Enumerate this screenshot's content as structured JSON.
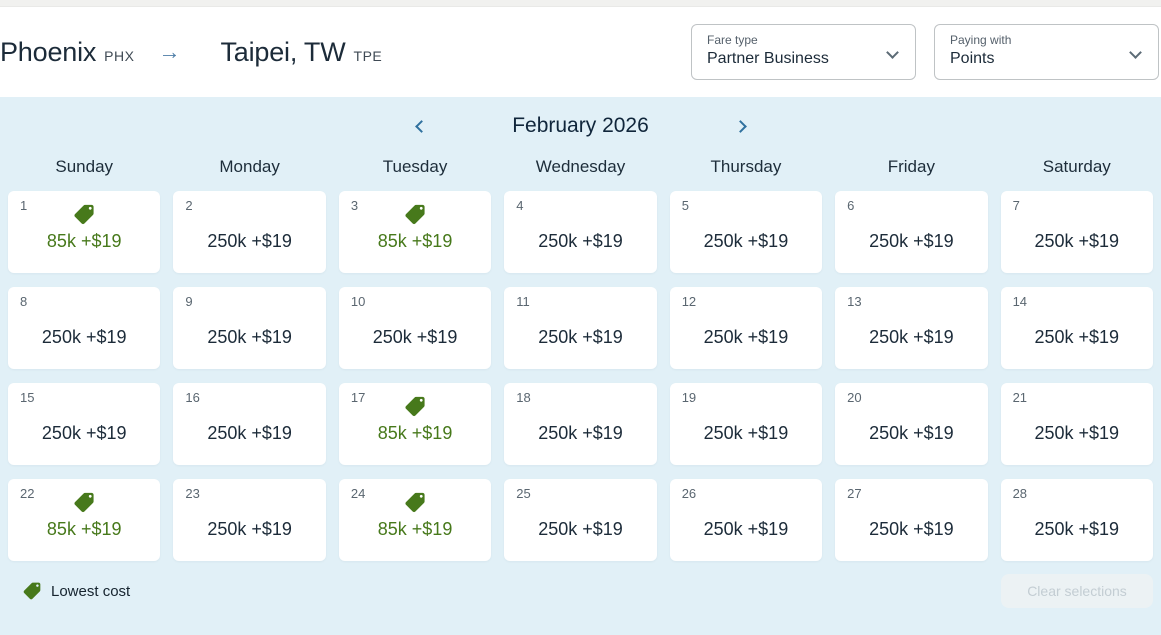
{
  "header": {
    "origin": {
      "city": "Phoenix",
      "code": "PHX"
    },
    "destination": {
      "city": "Taipei, TW",
      "code": "TPE"
    },
    "fare_type": {
      "label": "Fare type",
      "value": "Partner Business"
    },
    "paying_with": {
      "label": "Paying with",
      "value": "Points"
    }
  },
  "calendar": {
    "month_label": "February 2026",
    "day_headers": [
      "Sunday",
      "Monday",
      "Tuesday",
      "Wednesday",
      "Thursday",
      "Friday",
      "Saturday"
    ],
    "days": [
      {
        "day": 1,
        "price": "85k +$19",
        "lowest": true
      },
      {
        "day": 2,
        "price": "250k +$19",
        "lowest": false
      },
      {
        "day": 3,
        "price": "85k +$19",
        "lowest": true
      },
      {
        "day": 4,
        "price": "250k +$19",
        "lowest": false
      },
      {
        "day": 5,
        "price": "250k +$19",
        "lowest": false
      },
      {
        "day": 6,
        "price": "250k +$19",
        "lowest": false
      },
      {
        "day": 7,
        "price": "250k +$19",
        "lowest": false
      },
      {
        "day": 8,
        "price": "250k +$19",
        "lowest": false
      },
      {
        "day": 9,
        "price": "250k +$19",
        "lowest": false
      },
      {
        "day": 10,
        "price": "250k +$19",
        "lowest": false
      },
      {
        "day": 11,
        "price": "250k +$19",
        "lowest": false
      },
      {
        "day": 12,
        "price": "250k +$19",
        "lowest": false
      },
      {
        "day": 13,
        "price": "250k +$19",
        "lowest": false
      },
      {
        "day": 14,
        "price": "250k +$19",
        "lowest": false
      },
      {
        "day": 15,
        "price": "250k +$19",
        "lowest": false
      },
      {
        "day": 16,
        "price": "250k +$19",
        "lowest": false
      },
      {
        "day": 17,
        "price": "85k +$19",
        "lowest": true
      },
      {
        "day": 18,
        "price": "250k +$19",
        "lowest": false
      },
      {
        "day": 19,
        "price": "250k +$19",
        "lowest": false
      },
      {
        "day": 20,
        "price": "250k +$19",
        "lowest": false
      },
      {
        "day": 21,
        "price": "250k +$19",
        "lowest": false
      },
      {
        "day": 22,
        "price": "85k +$19",
        "lowest": true
      },
      {
        "day": 23,
        "price": "250k +$19",
        "lowest": false
      },
      {
        "day": 24,
        "price": "85k +$19",
        "lowest": true
      },
      {
        "day": 25,
        "price": "250k +$19",
        "lowest": false
      },
      {
        "day": 26,
        "price": "250k +$19",
        "lowest": false
      },
      {
        "day": 27,
        "price": "250k +$19",
        "lowest": false
      },
      {
        "day": 28,
        "price": "250k +$19",
        "lowest": false
      }
    ],
    "legend_label": "Lowest cost",
    "clear_button_label": "Clear selections"
  },
  "colors": {
    "lowest_cost_green": "#47791b",
    "calendar_background": "#e1f0f7",
    "text_navy": "#1c2b39",
    "nav_chevron_blue": "#30719f",
    "route_arrow_blue": "#4d7da7",
    "disabled_button_bg": "#ecf2f4",
    "disabled_button_text": "#c3cdd3"
  }
}
